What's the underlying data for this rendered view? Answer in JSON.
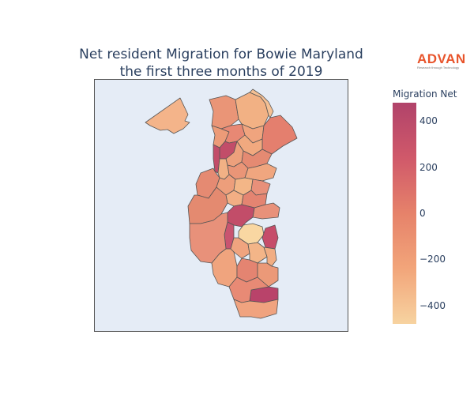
{
  "title": {
    "line1": "Net resident Migration for Bowie Maryland",
    "line2": "the first three months of 2019"
  },
  "logo": {
    "text": "ADVAN",
    "tagline": "Research through Technology"
  },
  "colorbar": {
    "title": "Migration Net",
    "min": -480,
    "max": 480,
    "ticks": [
      {
        "value": 400,
        "label": "400"
      },
      {
        "value": 200,
        "label": "200"
      },
      {
        "value": 0,
        "label": "0"
      },
      {
        "value": -200,
        "label": "−200"
      },
      {
        "value": -400,
        "label": "−400"
      }
    ],
    "colorscale": [
      "#f7d3a0",
      "#f2a57a",
      "#e6826a",
      "#d0596a",
      "#b1436a"
    ]
  },
  "colors": {
    "plot_background": "#e5ecf6",
    "tract_border": "#555555"
  }
}
